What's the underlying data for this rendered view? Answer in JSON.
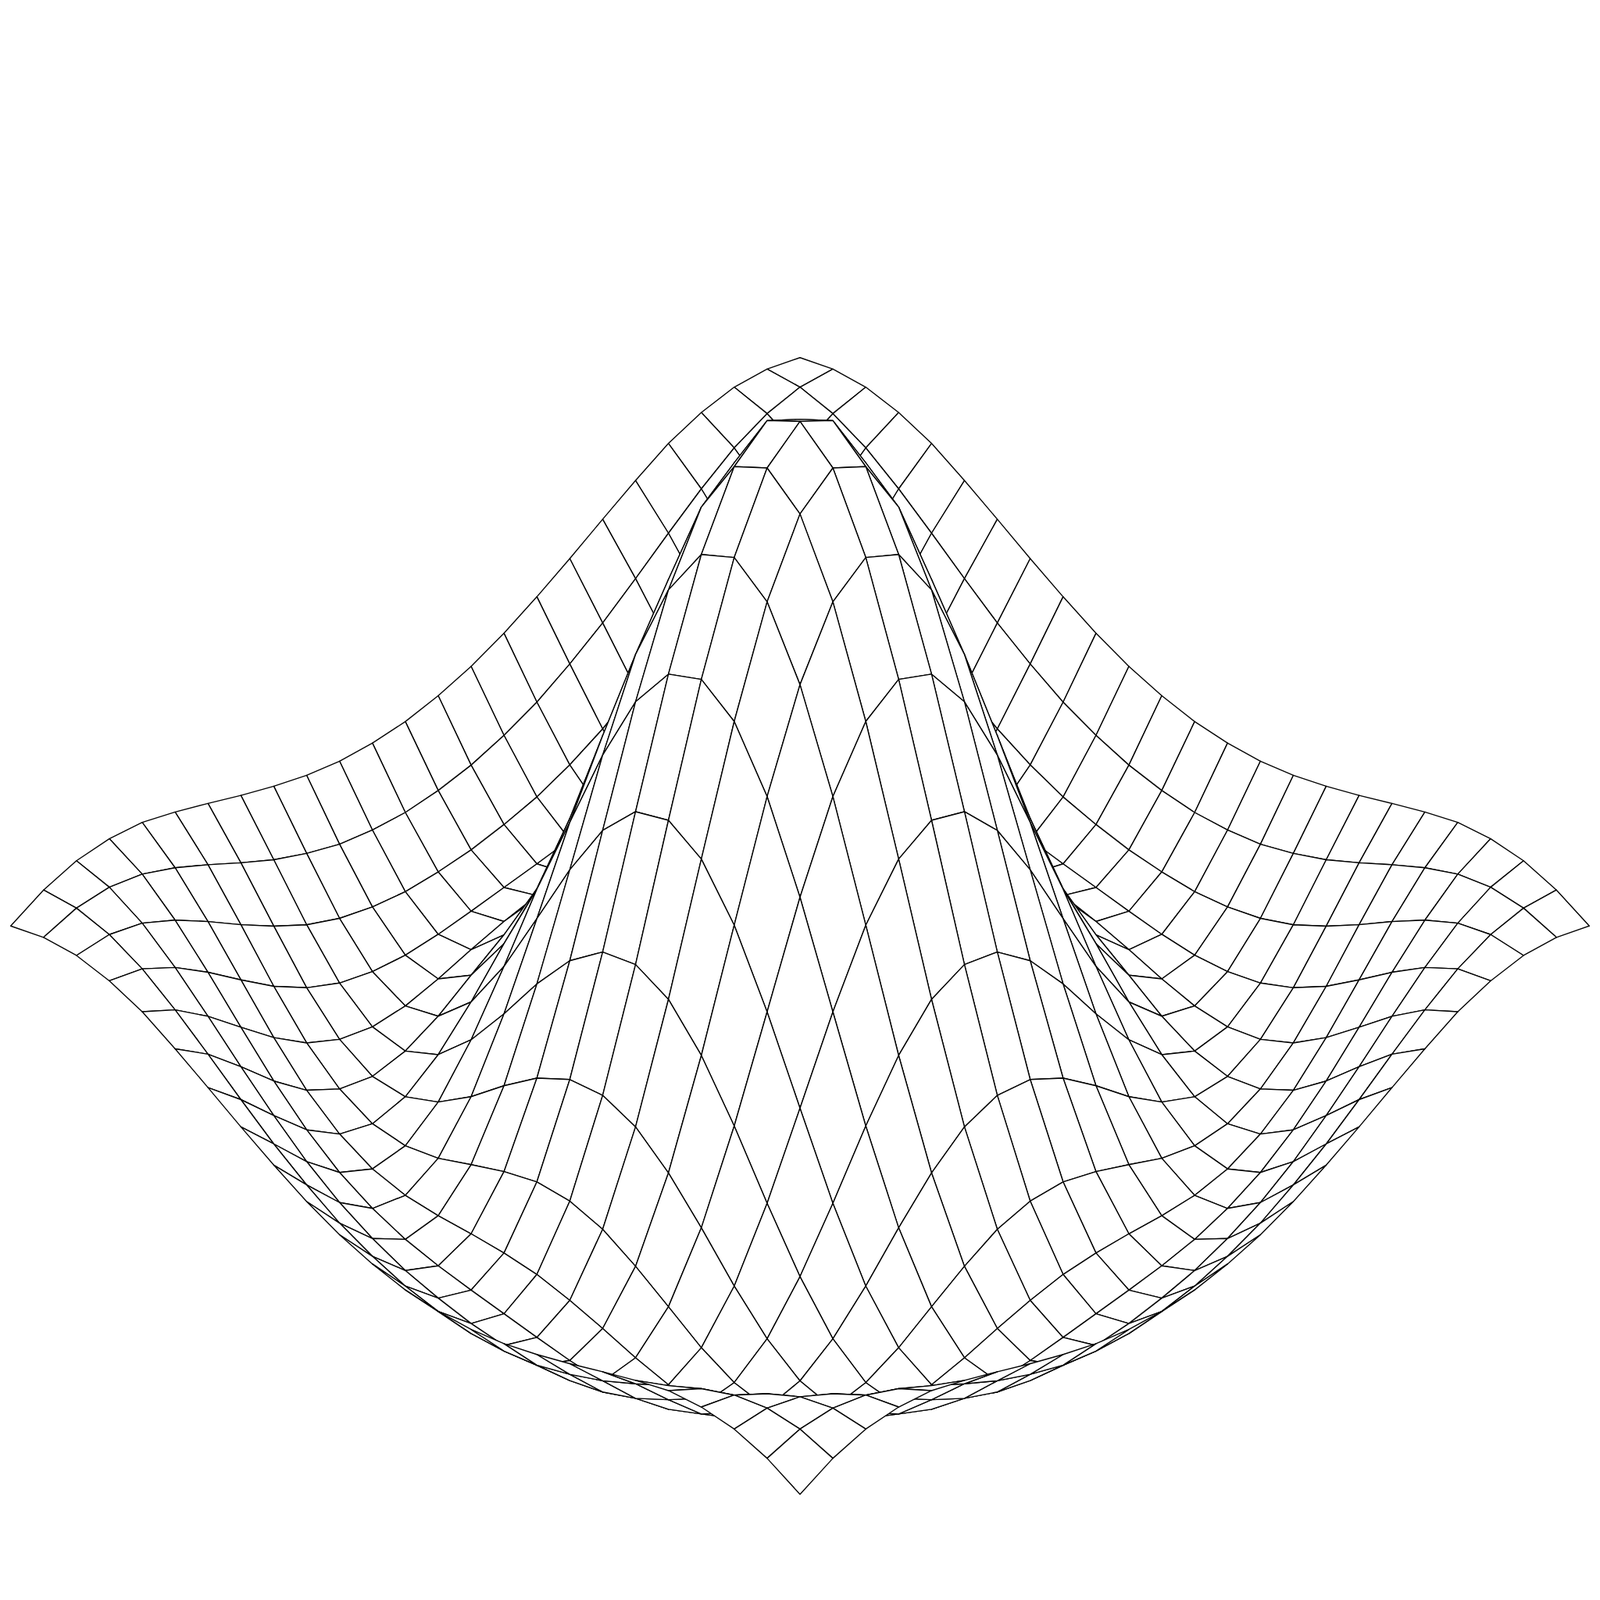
{
  "chart_data": {
    "type": "surface",
    "color": "#000000",
    "grid": false,
    "tick_labels": false,
    "x": [
      -6,
      -5.5,
      -5,
      -4.5,
      -4,
      -3.5,
      -3,
      -2.5,
      -2,
      -1.5,
      -1,
      -0.5,
      0,
      0.5,
      1,
      1.5,
      2,
      2.5,
      3,
      3.5,
      4,
      4.5,
      5,
      5.5,
      6
    ],
    "y": [
      -6,
      -5.5,
      -5,
      -4.5,
      -4,
      -3.5,
      -3,
      -2.5,
      -2,
      -1.5,
      -1,
      -0.5,
      0,
      0.5,
      1,
      1.5,
      2,
      2.5,
      3,
      3.5,
      4,
      4.5,
      5,
      5.5,
      6
    ],
    "z": [
      [
        0.096,
        0.118,
        0.128,
        0.125,
        0.112,
        0.088,
        0.061,
        0.033,
        0.007,
        -0.016,
        -0.033,
        -0.043,
        -0.047,
        -0.043,
        -0.033,
        -0.016,
        0.007,
        0.033,
        0.061,
        0.088,
        0.112,
        0.125,
        0.128,
        0.118,
        0.096
      ],
      [
        0.118,
        0.128,
        0.123,
        0.104,
        0.073,
        0.036,
        -0.003,
        -0.04,
        -0.071,
        -0.097,
        -0.114,
        -0.125,
        -0.128,
        -0.125,
        -0.114,
        -0.097,
        -0.071,
        -0.04,
        -0.003,
        0.036,
        0.073,
        0.104,
        0.123,
        0.128,
        0.118
      ],
      [
        0.128,
        0.123,
        0.101,
        0.064,
        0.019,
        -0.029,
        -0.074,
        -0.114,
        -0.145,
        -0.167,
        -0.182,
        -0.189,
        -0.192,
        -0.189,
        -0.182,
        -0.167,
        -0.145,
        -0.114,
        -0.074,
        -0.029,
        0.019,
        0.064,
        0.101,
        0.123,
        0.128
      ],
      [
        0.125,
        0.104,
        0.064,
        0.013,
        -0.043,
        -0.097,
        -0.142,
        -0.176,
        -0.198,
        -0.211,
        -0.216,
        -0.217,
        -0.217,
        -0.217,
        -0.216,
        -0.211,
        -0.198,
        -0.176,
        -0.142,
        -0.097,
        -0.043,
        0.013,
        0.064,
        0.104,
        0.125
      ],
      [
        0.112,
        0.073,
        0.019,
        -0.043,
        -0.104,
        -0.156,
        -0.192,
        -0.212,
        -0.217,
        -0.211,
        -0.201,
        -0.193,
        -0.189,
        -0.193,
        -0.201,
        -0.211,
        -0.217,
        -0.212,
        -0.192,
        -0.156,
        -0.104,
        -0.043,
        0.019,
        0.073,
        0.112
      ],
      [
        0.088,
        0.036,
        -0.029,
        -0.097,
        -0.156,
        -0.196,
        -0.216,
        -0.213,
        -0.193,
        -0.162,
        -0.132,
        -0.108,
        -0.1,
        -0.108,
        -0.132,
        -0.162,
        -0.193,
        -0.213,
        -0.216,
        -0.196,
        -0.156,
        -0.097,
        -0.029,
        0.036,
        0.088
      ],
      [
        0.061,
        -0.003,
        -0.074,
        -0.142,
        -0.192,
        -0.216,
        -0.21,
        -0.177,
        -0.125,
        -0.063,
        -0.007,
        0.033,
        0.047,
        0.033,
        -0.007,
        -0.063,
        -0.125,
        -0.177,
        -0.21,
        -0.216,
        -0.192,
        -0.142,
        -0.074,
        -0.003,
        0.061
      ],
      [
        0.033,
        -0.04,
        -0.114,
        -0.176,
        -0.212,
        -0.213,
        -0.177,
        -0.108,
        -0.019,
        0.077,
        0.161,
        0.219,
        0.239,
        0.219,
        0.161,
        0.077,
        -0.019,
        -0.108,
        -0.177,
        -0.213,
        -0.212,
        -0.176,
        -0.114,
        -0.04,
        0.033
      ],
      [
        0.007,
        -0.071,
        -0.145,
        -0.198,
        -0.217,
        -0.193,
        -0.125,
        -0.019,
        0.109,
        0.239,
        0.352,
        0.428,
        0.455,
        0.428,
        0.352,
        0.239,
        0.109,
        -0.019,
        -0.125,
        -0.193,
        -0.217,
        -0.198,
        -0.145,
        -0.071,
        0.007
      ],
      [
        -0.016,
        -0.097,
        -0.167,
        -0.211,
        -0.211,
        -0.162,
        -0.063,
        0.077,
        0.239,
        0.402,
        0.54,
        0.632,
        0.665,
        0.632,
        0.54,
        0.402,
        0.239,
        0.077,
        -0.063,
        -0.162,
        -0.211,
        -0.211,
        -0.167,
        -0.097,
        -0.016
      ],
      [
        -0.033,
        -0.114,
        -0.182,
        -0.216,
        -0.201,
        -0.132,
        -0.007,
        0.161,
        0.352,
        0.54,
        0.698,
        0.804,
        0.841,
        0.804,
        0.698,
        0.54,
        0.352,
        0.161,
        -0.007,
        -0.132,
        -0.201,
        -0.216,
        -0.182,
        -0.114,
        -0.033
      ],
      [
        -0.043,
        -0.125,
        -0.189,
        -0.217,
        -0.193,
        -0.108,
        0.033,
        0.219,
        0.428,
        0.632,
        0.804,
        0.919,
        0.959,
        0.919,
        0.804,
        0.632,
        0.428,
        0.219,
        0.033,
        -0.108,
        -0.193,
        -0.217,
        -0.189,
        -0.125,
        -0.043
      ],
      [
        -0.047,
        -0.128,
        -0.192,
        -0.217,
        -0.189,
        -0.1,
        0.047,
        0.239,
        0.455,
        0.665,
        0.841,
        0.959,
        1,
        0.959,
        0.841,
        0.665,
        0.455,
        0.239,
        0.047,
        -0.1,
        -0.189,
        -0.217,
        -0.192,
        -0.128,
        -0.047
      ],
      [
        -0.043,
        -0.125,
        -0.189,
        -0.217,
        -0.193,
        -0.108,
        0.033,
        0.219,
        0.428,
        0.632,
        0.804,
        0.919,
        0.959,
        0.919,
        0.804,
        0.632,
        0.428,
        0.219,
        0.033,
        -0.108,
        -0.193,
        -0.217,
        -0.189,
        -0.125,
        -0.043
      ],
      [
        -0.033,
        -0.114,
        -0.182,
        -0.216,
        -0.201,
        -0.132,
        -0.007,
        0.161,
        0.352,
        0.54,
        0.698,
        0.804,
        0.841,
        0.804,
        0.698,
        0.54,
        0.352,
        0.161,
        -0.007,
        -0.132,
        -0.201,
        -0.216,
        -0.182,
        -0.114,
        -0.033
      ],
      [
        -0.016,
        -0.097,
        -0.167,
        -0.211,
        -0.211,
        -0.162,
        -0.063,
        0.077,
        0.239,
        0.402,
        0.54,
        0.632,
        0.665,
        0.632,
        0.54,
        0.402,
        0.239,
        0.077,
        -0.063,
        -0.162,
        -0.211,
        -0.211,
        -0.167,
        -0.097,
        -0.016
      ],
      [
        0.007,
        -0.071,
        -0.145,
        -0.198,
        -0.217,
        -0.193,
        -0.125,
        -0.019,
        0.109,
        0.239,
        0.352,
        0.428,
        0.455,
        0.428,
        0.352,
        0.239,
        0.109,
        -0.019,
        -0.125,
        -0.193,
        -0.217,
        -0.198,
        -0.145,
        -0.071,
        0.007
      ],
      [
        0.033,
        -0.04,
        -0.114,
        -0.176,
        -0.212,
        -0.213,
        -0.177,
        -0.108,
        -0.019,
        0.077,
        0.161,
        0.219,
        0.239,
        0.219,
        0.161,
        0.077,
        -0.019,
        -0.108,
        -0.177,
        -0.213,
        -0.212,
        -0.176,
        -0.114,
        -0.04,
        0.033
      ],
      [
        0.061,
        -0.003,
        -0.074,
        -0.142,
        -0.192,
        -0.216,
        -0.21,
        -0.177,
        -0.125,
        -0.063,
        -0.007,
        0.033,
        0.047,
        0.033,
        -0.007,
        -0.063,
        -0.125,
        -0.177,
        -0.21,
        -0.216,
        -0.192,
        -0.142,
        -0.074,
        -0.003,
        0.061
      ],
      [
        0.088,
        0.036,
        -0.029,
        -0.097,
        -0.156,
        -0.196,
        -0.216,
        -0.213,
        -0.193,
        -0.162,
        -0.132,
        -0.108,
        -0.1,
        -0.108,
        -0.132,
        -0.162,
        -0.193,
        -0.213,
        -0.216,
        -0.196,
        -0.156,
        -0.097,
        -0.029,
        0.036,
        0.088
      ],
      [
        0.112,
        0.073,
        0.019,
        -0.043,
        -0.104,
        -0.156,
        -0.192,
        -0.212,
        -0.217,
        -0.211,
        -0.201,
        -0.193,
        -0.189,
        -0.193,
        -0.201,
        -0.211,
        -0.217,
        -0.212,
        -0.192,
        -0.156,
        -0.104,
        -0.043,
        0.019,
        0.073,
        0.112
      ],
      [
        0.125,
        0.104,
        0.064,
        0.013,
        -0.043,
        -0.097,
        -0.142,
        -0.176,
        -0.198,
        -0.211,
        -0.216,
        -0.217,
        -0.217,
        -0.217,
        -0.216,
        -0.211,
        -0.198,
        -0.176,
        -0.142,
        -0.097,
        -0.043,
        0.013,
        0.064,
        0.104,
        0.125
      ],
      [
        0.128,
        0.123,
        0.101,
        0.064,
        0.019,
        -0.029,
        -0.074,
        -0.114,
        -0.145,
        -0.167,
        -0.182,
        -0.189,
        -0.192,
        -0.189,
        -0.182,
        -0.167,
        -0.145,
        -0.114,
        -0.074,
        -0.029,
        0.019,
        0.064,
        0.101,
        0.123,
        0.128
      ],
      [
        0.118,
        0.128,
        0.123,
        0.104,
        0.073,
        0.036,
        -0.003,
        -0.04,
        -0.071,
        -0.097,
        -0.114,
        -0.125,
        -0.128,
        -0.125,
        -0.114,
        -0.097,
        -0.071,
        -0.04,
        -0.003,
        0.036,
        0.073,
        0.104,
        0.123,
        0.128,
        0.118
      ],
      [
        0.096,
        0.118,
        0.128,
        0.125,
        0.112,
        0.088,
        0.061,
        0.033,
        0.007,
        -0.016,
        -0.033,
        -0.043,
        -0.047,
        -0.043,
        -0.033,
        -0.016,
        0.007,
        0.033,
        0.061,
        0.088,
        0.112,
        0.125,
        0.128,
        0.118,
        0.096
      ]
    ]
  }
}
